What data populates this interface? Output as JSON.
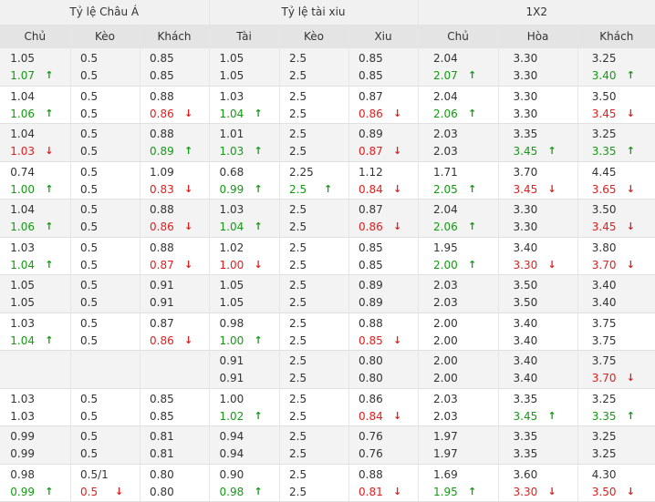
{
  "colors": {
    "up": "#149a14",
    "down": "#e01e1e",
    "header_bg": "#f1f1f1",
    "subheader_bg": "#e4e4e4",
    "shade_bg": "#f3f3f3"
  },
  "groups": [
    "Tỷ lệ Châu Á",
    "Tỷ lệ tài xiu",
    "1X2"
  ],
  "columns": [
    "Chủ",
    "Kèo",
    "Khách",
    "Tài",
    "Kèo",
    "Xiu",
    "Chủ",
    "Hòa",
    "Khách"
  ],
  "arrows": {
    "up": "↑",
    "down": "↓"
  },
  "rows": [
    {
      "shade": true,
      "top": [
        {
          "v": "1.05"
        },
        {
          "v": "0.5"
        },
        {
          "v": "0.85"
        },
        {
          "v": "1.05"
        },
        {
          "v": "2.5"
        },
        {
          "v": "0.85"
        },
        {
          "v": "2.04"
        },
        {
          "v": "3.30"
        },
        {
          "v": "3.25"
        }
      ],
      "bottom": [
        {
          "v": "1.07",
          "d": "up"
        },
        {
          "v": "0.5"
        },
        {
          "v": "0.85"
        },
        {
          "v": "1.05"
        },
        {
          "v": "2.5"
        },
        {
          "v": "0.85"
        },
        {
          "v": "2.07",
          "d": "up"
        },
        {
          "v": "3.30"
        },
        {
          "v": "3.40",
          "d": "up"
        }
      ]
    },
    {
      "shade": false,
      "top": [
        {
          "v": "1.04"
        },
        {
          "v": "0.5"
        },
        {
          "v": "0.88"
        },
        {
          "v": "1.03"
        },
        {
          "v": "2.5"
        },
        {
          "v": "0.87"
        },
        {
          "v": "2.04"
        },
        {
          "v": "3.30"
        },
        {
          "v": "3.50"
        }
      ],
      "bottom": [
        {
          "v": "1.06",
          "d": "up"
        },
        {
          "v": "0.5"
        },
        {
          "v": "0.86",
          "d": "down"
        },
        {
          "v": "1.04",
          "d": "up"
        },
        {
          "v": "2.5"
        },
        {
          "v": "0.86",
          "d": "down"
        },
        {
          "v": "2.06",
          "d": "up"
        },
        {
          "v": "3.30"
        },
        {
          "v": "3.45",
          "d": "down"
        }
      ]
    },
    {
      "shade": true,
      "top": [
        {
          "v": "1.04"
        },
        {
          "v": "0.5"
        },
        {
          "v": "0.88"
        },
        {
          "v": "1.01"
        },
        {
          "v": "2.5"
        },
        {
          "v": "0.89"
        },
        {
          "v": "2.03"
        },
        {
          "v": "3.35"
        },
        {
          "v": "3.25"
        }
      ],
      "bottom": [
        {
          "v": "1.03",
          "d": "down"
        },
        {
          "v": "0.5"
        },
        {
          "v": "0.89",
          "d": "up"
        },
        {
          "v": "1.03",
          "d": "up"
        },
        {
          "v": "2.5"
        },
        {
          "v": "0.87",
          "d": "down"
        },
        {
          "v": "2.03"
        },
        {
          "v": "3.45",
          "d": "up"
        },
        {
          "v": "3.35",
          "d": "up"
        }
      ]
    },
    {
      "shade": false,
      "top": [
        {
          "v": "0.74"
        },
        {
          "v": "0.5"
        },
        {
          "v": "1.09"
        },
        {
          "v": "0.68"
        },
        {
          "v": "2.25"
        },
        {
          "v": "1.12"
        },
        {
          "v": "1.71"
        },
        {
          "v": "3.70"
        },
        {
          "v": "4.45"
        }
      ],
      "bottom": [
        {
          "v": "1.00",
          "d": "up"
        },
        {
          "v": "0.5"
        },
        {
          "v": "0.83",
          "d": "down"
        },
        {
          "v": "0.99",
          "d": "up"
        },
        {
          "v": "2.5",
          "d": "up"
        },
        {
          "v": "0.84",
          "d": "down"
        },
        {
          "v": "2.05",
          "d": "up"
        },
        {
          "v": "3.45",
          "d": "down"
        },
        {
          "v": "3.65",
          "d": "down"
        }
      ]
    },
    {
      "shade": true,
      "top": [
        {
          "v": "1.04"
        },
        {
          "v": "0.5"
        },
        {
          "v": "0.88"
        },
        {
          "v": "1.03"
        },
        {
          "v": "2.5"
        },
        {
          "v": "0.87"
        },
        {
          "v": "2.04"
        },
        {
          "v": "3.30"
        },
        {
          "v": "3.50"
        }
      ],
      "bottom": [
        {
          "v": "1.06",
          "d": "up"
        },
        {
          "v": "0.5"
        },
        {
          "v": "0.86",
          "d": "down"
        },
        {
          "v": "1.04",
          "d": "up"
        },
        {
          "v": "2.5"
        },
        {
          "v": "0.86",
          "d": "down"
        },
        {
          "v": "2.06",
          "d": "up"
        },
        {
          "v": "3.30"
        },
        {
          "v": "3.45",
          "d": "down"
        }
      ]
    },
    {
      "shade": false,
      "top": [
        {
          "v": "1.03"
        },
        {
          "v": "0.5"
        },
        {
          "v": "0.88"
        },
        {
          "v": "1.02"
        },
        {
          "v": "2.5"
        },
        {
          "v": "0.85"
        },
        {
          "v": "1.95"
        },
        {
          "v": "3.40"
        },
        {
          "v": "3.80"
        }
      ],
      "bottom": [
        {
          "v": "1.04",
          "d": "up"
        },
        {
          "v": "0.5"
        },
        {
          "v": "0.87",
          "d": "down"
        },
        {
          "v": "1.00",
          "d": "down"
        },
        {
          "v": "2.5"
        },
        {
          "v": "0.85"
        },
        {
          "v": "2.00",
          "d": "up"
        },
        {
          "v": "3.30",
          "d": "down"
        },
        {
          "v": "3.70",
          "d": "down"
        }
      ]
    },
    {
      "shade": true,
      "top": [
        {
          "v": "1.05"
        },
        {
          "v": "0.5"
        },
        {
          "v": "0.91"
        },
        {
          "v": "1.05"
        },
        {
          "v": "2.5"
        },
        {
          "v": "0.89"
        },
        {
          "v": "2.03"
        },
        {
          "v": "3.50"
        },
        {
          "v": "3.40"
        }
      ],
      "bottom": [
        {
          "v": "1.05"
        },
        {
          "v": "0.5"
        },
        {
          "v": "0.91"
        },
        {
          "v": "1.05"
        },
        {
          "v": "2.5"
        },
        {
          "v": "0.89"
        },
        {
          "v": "2.03"
        },
        {
          "v": "3.50"
        },
        {
          "v": "3.40"
        }
      ]
    },
    {
      "shade": false,
      "top": [
        {
          "v": "1.03"
        },
        {
          "v": "0.5"
        },
        {
          "v": "0.87"
        },
        {
          "v": "0.98"
        },
        {
          "v": "2.5"
        },
        {
          "v": "0.88"
        },
        {
          "v": "2.00"
        },
        {
          "v": "3.40"
        },
        {
          "v": "3.75"
        }
      ],
      "bottom": [
        {
          "v": "1.04",
          "d": "up"
        },
        {
          "v": "0.5"
        },
        {
          "v": "0.86",
          "d": "down"
        },
        {
          "v": "1.00",
          "d": "up"
        },
        {
          "v": "2.5"
        },
        {
          "v": "0.85",
          "d": "down"
        },
        {
          "v": "2.00"
        },
        {
          "v": "3.40"
        },
        {
          "v": "3.75"
        }
      ]
    },
    {
      "shade": true,
      "top": [
        {
          "v": ""
        },
        {
          "v": ""
        },
        {
          "v": ""
        },
        {
          "v": "0.91"
        },
        {
          "v": "2.5"
        },
        {
          "v": "0.80"
        },
        {
          "v": "2.00"
        },
        {
          "v": "3.40"
        },
        {
          "v": "3.75"
        }
      ],
      "bottom": [
        {
          "v": ""
        },
        {
          "v": ""
        },
        {
          "v": ""
        },
        {
          "v": "0.91"
        },
        {
          "v": "2.5"
        },
        {
          "v": "0.80"
        },
        {
          "v": "2.00"
        },
        {
          "v": "3.40"
        },
        {
          "v": "3.70",
          "d": "down"
        }
      ]
    },
    {
      "shade": false,
      "top": [
        {
          "v": "1.03"
        },
        {
          "v": "0.5"
        },
        {
          "v": "0.85"
        },
        {
          "v": "1.00"
        },
        {
          "v": "2.5"
        },
        {
          "v": "0.86"
        },
        {
          "v": "2.03"
        },
        {
          "v": "3.35"
        },
        {
          "v": "3.25"
        }
      ],
      "bottom": [
        {
          "v": "1.03"
        },
        {
          "v": "0.5"
        },
        {
          "v": "0.85"
        },
        {
          "v": "1.02",
          "d": "up"
        },
        {
          "v": "2.5"
        },
        {
          "v": "0.84",
          "d": "down"
        },
        {
          "v": "2.03"
        },
        {
          "v": "3.45",
          "d": "up"
        },
        {
          "v": "3.35",
          "d": "up"
        }
      ]
    },
    {
      "shade": true,
      "top": [
        {
          "v": "0.99"
        },
        {
          "v": "0.5"
        },
        {
          "v": "0.81"
        },
        {
          "v": "0.94"
        },
        {
          "v": "2.5"
        },
        {
          "v": "0.76"
        },
        {
          "v": "1.97"
        },
        {
          "v": "3.35"
        },
        {
          "v": "3.25"
        }
      ],
      "bottom": [
        {
          "v": "0.99"
        },
        {
          "v": "0.5"
        },
        {
          "v": "0.81"
        },
        {
          "v": "0.94"
        },
        {
          "v": "2.5"
        },
        {
          "v": "0.76"
        },
        {
          "v": "1.97"
        },
        {
          "v": "3.35"
        },
        {
          "v": "3.25"
        }
      ]
    },
    {
      "shade": false,
      "top": [
        {
          "v": "0.98"
        },
        {
          "v": "0.5/1"
        },
        {
          "v": "0.80"
        },
        {
          "v": "0.90"
        },
        {
          "v": "2.5"
        },
        {
          "v": "0.88"
        },
        {
          "v": "1.69"
        },
        {
          "v": "3.60"
        },
        {
          "v": "4.30"
        }
      ],
      "bottom": [
        {
          "v": "0.99",
          "d": "up"
        },
        {
          "v": "0.5",
          "d": "down"
        },
        {
          "v": "0.80"
        },
        {
          "v": "0.98",
          "d": "up"
        },
        {
          "v": "2.5"
        },
        {
          "v": "0.81",
          "d": "down"
        },
        {
          "v": "1.95",
          "d": "up"
        },
        {
          "v": "3.30",
          "d": "down"
        },
        {
          "v": "3.50",
          "d": "down"
        }
      ]
    }
  ]
}
